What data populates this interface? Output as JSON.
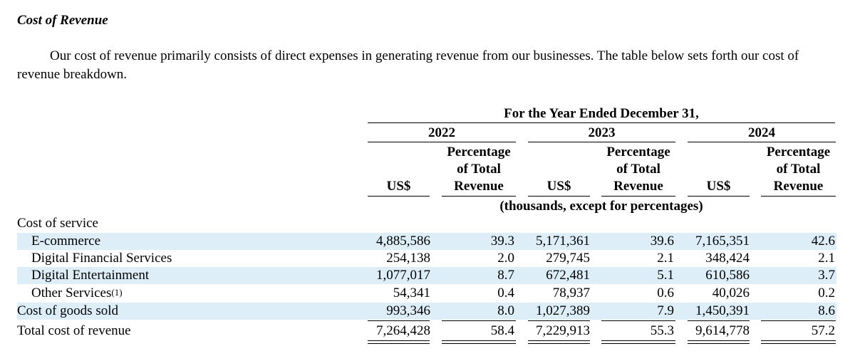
{
  "section_title": "Cost of Revenue",
  "intro": "Our cost of revenue primarily consists of direct expenses in generating revenue from our businesses. The table below sets forth our cost of revenue breakdown.",
  "table": {
    "period_header": "For the Year Ended December 31,",
    "years": [
      "2022",
      "2023",
      "2024"
    ],
    "col_us": "US$",
    "col_pct_1": "Percentage",
    "col_pct_2": "of Total",
    "col_pct_3": "Revenue",
    "units_note": "(thousands, except for percentages)",
    "rows": [
      {
        "label": "Cost of service",
        "values": [
          "",
          "",
          "",
          "",
          "",
          ""
        ]
      },
      {
        "label": "E-commerce",
        "values": [
          "4,885,586",
          "39.3",
          "5,171,361",
          "39.6",
          "7,165,351",
          "42.6"
        ]
      },
      {
        "label": "Digital Financial Services",
        "values": [
          "254,138",
          "2.0",
          "279,745",
          "2.1",
          "348,424",
          "2.1"
        ]
      },
      {
        "label": "Digital Entertainment",
        "values": [
          "1,077,017",
          "8.7",
          "672,481",
          "5.1",
          "610,586",
          "3.7"
        ]
      },
      {
        "label": "Other Services",
        "footnote": "(1)",
        "values": [
          "54,341",
          "0.4",
          "78,937",
          "0.6",
          "40,026",
          "0.2"
        ]
      },
      {
        "label": "Cost of goods sold",
        "values": [
          "993,346",
          "8.0",
          "1,027,389",
          "7.9",
          "1,450,391",
          "8.6"
        ]
      },
      {
        "label": "Total cost of revenue",
        "values": [
          "7,264,428",
          "58.4",
          "7,229,913",
          "55.3",
          "9,614,778",
          "57.2"
        ]
      }
    ]
  },
  "colors": {
    "row_shade": "#ddeef9"
  }
}
